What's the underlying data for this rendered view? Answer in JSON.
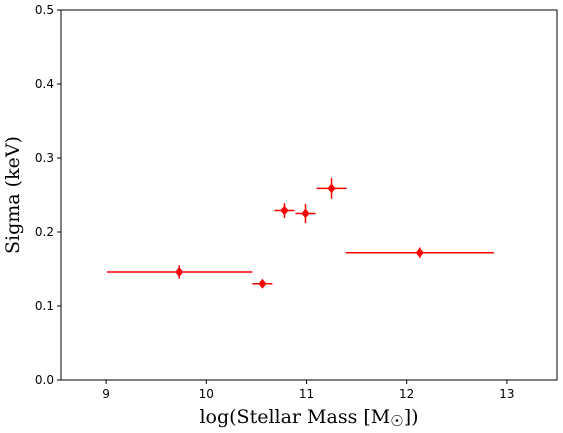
{
  "chart_data": {
    "type": "scatter",
    "xlabel": "log(Stellar Mass [M",
    "xlabel_symbol": "☉",
    "xlabel_close": "])",
    "ylabel": "Sigma (keV)",
    "xlim": [
      8.55,
      13.5
    ],
    "ylim": [
      0.0,
      0.5
    ],
    "xticks": [
      9,
      10,
      11,
      12,
      13
    ],
    "xtick_labels": [
      "9",
      "10",
      "11",
      "12",
      "13"
    ],
    "yticks": [
      0.0,
      0.1,
      0.2,
      0.3,
      0.4,
      0.5
    ],
    "ytick_labels": [
      "0.0",
      "0.1",
      "0.2",
      "0.3",
      "0.4",
      "0.5"
    ],
    "grid": false,
    "marker": "diamond",
    "color": "#ff0000",
    "points": [
      {
        "x": 9.73,
        "y": 0.146,
        "xerr_low": 0.72,
        "xerr_high": 0.73,
        "yerr": 0.009
      },
      {
        "x": 10.56,
        "y": 0.13,
        "xerr_low": 0.1,
        "xerr_high": 0.1,
        "yerr": 0.005
      },
      {
        "x": 10.78,
        "y": 0.229,
        "xerr_low": 0.1,
        "xerr_high": 0.1,
        "yerr": 0.01
      },
      {
        "x": 10.99,
        "y": 0.225,
        "xerr_low": 0.1,
        "xerr_high": 0.1,
        "yerr": 0.013
      },
      {
        "x": 11.25,
        "y": 0.259,
        "xerr_low": 0.15,
        "xerr_high": 0.15,
        "yerr": 0.014
      },
      {
        "x": 12.13,
        "y": 0.172,
        "xerr_low": 0.74,
        "xerr_high": 0.74,
        "yerr": 0.007
      }
    ]
  }
}
